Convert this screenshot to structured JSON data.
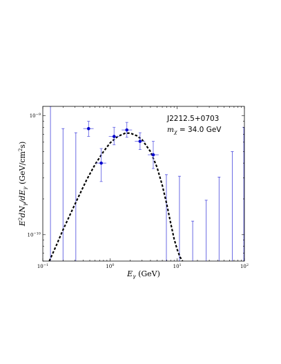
{
  "chart_data": {
    "type": "scatter",
    "xscale": "log",
    "yscale": "log",
    "xlim": [
      0.1,
      100
    ],
    "ylim": [
      6e-11,
      1.2e-09
    ],
    "grid": false,
    "xlabel": "Eγ (GeV)",
    "ylabel": "E²dNγ/dEγ (GeV/cm²s)",
    "x_tick_labels": [
      {
        "value": 0.1,
        "base": "10",
        "exp": "−1"
      },
      {
        "value": 1,
        "base": "10",
        "exp": "0"
      },
      {
        "value": 10,
        "base": "10",
        "exp": "1"
      },
      {
        "value": 100,
        "base": "10",
        "exp": "2"
      }
    ],
    "y_tick_labels": [
      {
        "value": 1e-10,
        "base": "10",
        "exp": "−10"
      },
      {
        "value": 1e-09,
        "base": "10",
        "exp": "−9"
      }
    ],
    "annotations": {
      "source": "J2212.5+0703",
      "mass_prefix": "m",
      "mass_sub": "χ",
      "mass_value": " = 34.0 GeV"
    },
    "series": [
      {
        "kind": "points",
        "color": "#0000cc",
        "bar_color": "#6a6ae6",
        "points": [
          {
            "x": 0.48,
            "y": 7.8e-10,
            "xlo": 0.4,
            "xhi": 0.57,
            "ylo": 6.7e-10,
            "yhi": 9e-10
          },
          {
            "x": 0.74,
            "y": 4e-10,
            "xlo": 0.62,
            "xhi": 0.88,
            "ylo": 2.8e-10,
            "yhi": 5.3e-10
          },
          {
            "x": 1.15,
            "y": 6.7e-10,
            "xlo": 0.96,
            "xhi": 1.37,
            "ylo": 5.7e-10,
            "yhi": 8e-10
          },
          {
            "x": 1.78,
            "y": 7.6e-10,
            "xlo": 1.49,
            "xhi": 2.13,
            "ylo": 6.6e-10,
            "yhi": 8.8e-10
          },
          {
            "x": 2.8,
            "y": 6.1e-10,
            "xlo": 2.34,
            "xhi": 3.34,
            "ylo": 5.2e-10,
            "yhi": 7.2e-10
          },
          {
            "x": 4.4,
            "y": 4.7e-10,
            "xlo": 3.65,
            "xhi": 5.3,
            "ylo": 3.6e-10,
            "yhi": 6.1e-10
          }
        ]
      },
      {
        "kind": "upper_limits",
        "color": "#5a5ae0",
        "points": [
          {
            "x": 0.13,
            "top": 1.2e-09
          },
          {
            "x": 0.2,
            "top": 7.8e-10
          },
          {
            "x": 0.31,
            "top": 7.2e-10
          },
          {
            "x": 6.9,
            "top": 3.2e-10
          },
          {
            "x": 10.8,
            "top": 3.1e-10
          },
          {
            "x": 17,
            "top": 1.3e-10
          },
          {
            "x": 27,
            "top": 1.95e-10
          },
          {
            "x": 42,
            "top": 3.05e-10
          },
          {
            "x": 66,
            "top": 5e-10
          },
          {
            "x": 98,
            "top": 8e-10
          }
        ]
      },
      {
        "kind": "model_curve",
        "style": "dashed",
        "color": "#000000",
        "x": [
          0.125,
          0.16,
          0.2,
          0.3,
          0.45,
          0.6,
          0.8,
          1.0,
          1.3,
          1.7,
          2.0,
          2.5,
          3.0,
          4.0,
          5.0,
          6.0,
          7.0,
          8.0,
          9.0,
          10.0,
          11.0,
          12.0
        ],
        "y": [
          6e-11,
          8.2e-11,
          1.1e-10,
          1.8e-10,
          2.9e-10,
          3.9e-10,
          5e-10,
          5.9e-10,
          6.7e-10,
          7.15e-10,
          7.15e-10,
          6.8e-10,
          6.3e-10,
          5e-10,
          3.7e-10,
          2.6e-10,
          1.8e-10,
          1.25e-10,
          9.2e-11,
          7.5e-11,
          6.5e-11,
          6e-11
        ]
      }
    ]
  }
}
